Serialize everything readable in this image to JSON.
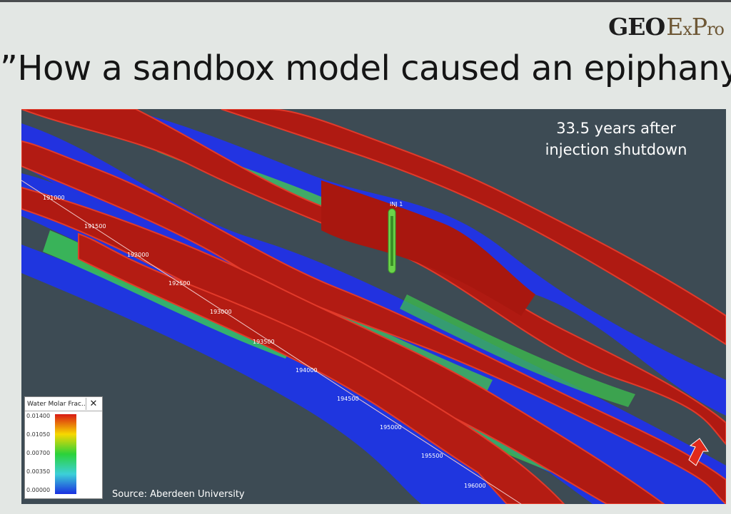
{
  "brand": {
    "geo": "GEO",
    "ex_e": "E",
    "ex_x": "x",
    "ex_p": "P",
    "ex_ro": "ro"
  },
  "headline": "”How a sandbox model caused an epiphany”",
  "figure": {
    "caption": "33.5 years after\ninjection shutdown",
    "well_label": "INJ 1",
    "source": "Source: Aberdeen University",
    "ticks": [
      "191000",
      "191500",
      "192000",
      "192500",
      "193000",
      "193500",
      "194000",
      "194500",
      "195000",
      "195500",
      "196000"
    ],
    "legend": {
      "title": "Water Molar Frac...",
      "close_label": "✕",
      "values": [
        "0.01400",
        "0.01050",
        "0.00700",
        "0.00350",
        "0.00000"
      ]
    }
  }
}
